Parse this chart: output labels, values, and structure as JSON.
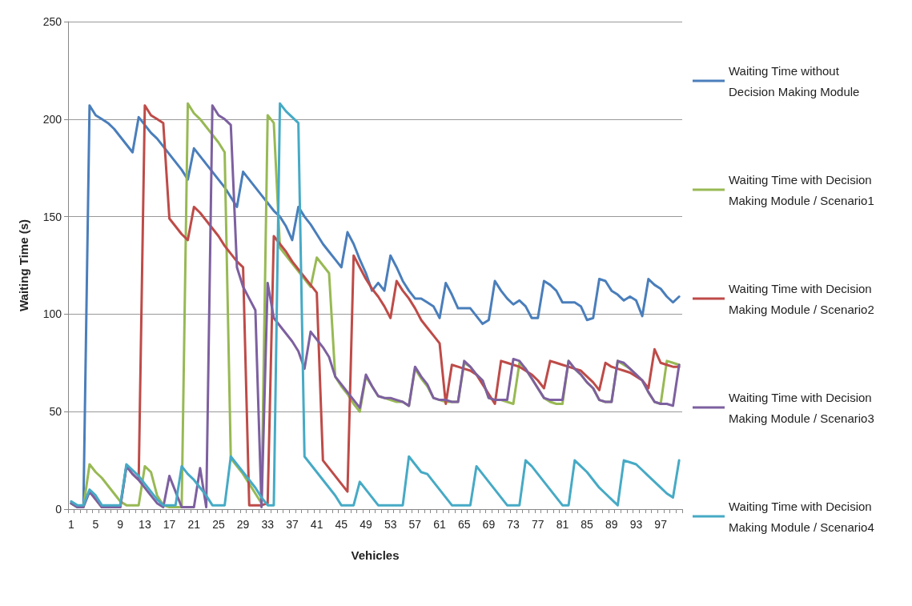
{
  "chart_data": {
    "type": "line",
    "xlabel": "Vehicles",
    "ylabel": "Waiting Time (s)",
    "categories": [
      "1",
      null,
      null,
      null,
      "5",
      null,
      null,
      null,
      "9",
      null,
      null,
      null,
      "13",
      null,
      null,
      null,
      "17",
      null,
      null,
      null,
      "21",
      null,
      null,
      null,
      "25",
      null,
      null,
      null,
      "29",
      null,
      null,
      null,
      "33",
      null,
      null,
      null,
      "37",
      null,
      null,
      null,
      "41",
      null,
      null,
      null,
      "45",
      null,
      null,
      null,
      "49",
      null,
      null,
      null,
      "53",
      null,
      null,
      null,
      "57",
      null,
      null,
      null,
      "61",
      null,
      null,
      null,
      "65",
      null,
      null,
      null,
      "69",
      null,
      null,
      null,
      "73",
      null,
      null,
      null,
      "77",
      null,
      null,
      null,
      "81",
      null,
      null,
      null,
      "85",
      null,
      null,
      null,
      "89",
      null,
      null,
      null,
      "93",
      null,
      null,
      null,
      "97",
      null,
      null,
      null
    ],
    "ylim": [
      0,
      250
    ],
    "yticks": [
      0,
      50,
      100,
      150,
      200,
      250
    ],
    "grid": "y",
    "legend": "right",
    "marker": "none",
    "line_style": "solid",
    "series": [
      {
        "name": "Waiting Time without Decision Making Module",
        "color": "#4a7ebb",
        "values": [
          3,
          1,
          1,
          207,
          202,
          200,
          198,
          195,
          191,
          187,
          183,
          201,
          197,
          193,
          190,
          186,
          182,
          178,
          174,
          169,
          185,
          181,
          177,
          173,
          169,
          165,
          160,
          155,
          173,
          169,
          165,
          161,
          157,
          153,
          150,
          145,
          138,
          155,
          150,
          146,
          141,
          136,
          132,
          128,
          124,
          142,
          136,
          128,
          121,
          112,
          116,
          112,
          130,
          124,
          117,
          112,
          108,
          108,
          106,
          104,
          98,
          116,
          110,
          103,
          103,
          103,
          99,
          95,
          97,
          117,
          112,
          108,
          105,
          107,
          104,
          98,
          98,
          117,
          115,
          112,
          106,
          106,
          106,
          104,
          97,
          98,
          118,
          117,
          112,
          110,
          107,
          109,
          107,
          99,
          118,
          115,
          113,
          109,
          106,
          109
        ]
      },
      {
        "name": "Waiting Time with Decision Making Module / Scenario1",
        "color": "#98b954",
        "values": [
          3,
          1,
          1,
          23,
          19,
          16,
          12,
          8,
          4,
          2,
          2,
          2,
          22,
          19,
          7,
          2,
          1,
          1,
          1,
          208,
          203,
          200,
          196,
          192,
          188,
          183,
          26,
          22,
          18,
          13,
          8,
          3,
          202,
          198,
          134,
          130,
          126,
          122,
          118,
          114,
          129,
          125,
          121,
          68,
          63,
          59,
          54,
          50,
          68,
          63,
          58,
          57,
          56,
          55,
          55,
          53,
          72,
          67,
          63,
          57,
          56,
          55,
          55,
          55,
          75,
          73,
          69,
          66,
          57,
          56,
          56,
          55,
          54,
          75,
          72,
          67,
          62,
          57,
          55,
          54,
          54,
          76,
          72,
          69,
          65,
          62,
          56,
          55,
          55,
          76,
          74,
          72,
          69,
          66,
          60,
          55,
          54,
          76,
          75,
          74
        ]
      },
      {
        "name": "Waiting Time with Decision Making Module / Scenario2",
        "color": "#be4b48",
        "values": [
          null,
          null,
          null,
          9,
          5,
          1,
          1,
          1,
          1,
          22,
          18,
          15,
          207,
          202,
          200,
          198,
          149,
          145,
          141,
          138,
          155,
          152,
          148,
          144,
          140,
          135,
          131,
          127,
          124,
          2,
          2,
          2,
          3,
          140,
          136,
          132,
          127,
          123,
          119,
          115,
          111,
          25,
          21,
          17,
          13,
          9,
          130,
          124,
          118,
          113,
          109,
          104,
          98,
          117,
          112,
          108,
          103,
          97,
          93,
          89,
          85,
          54,
          74,
          73,
          72,
          71,
          69,
          64,
          59,
          54,
          76,
          75,
          74,
          73,
          71,
          69,
          66,
          62,
          76,
          75,
          74,
          73,
          72,
          71,
          68,
          65,
          61,
          75,
          73,
          72,
          71,
          70,
          68,
          66,
          62,
          82,
          75,
          74,
          73,
          73
        ]
      },
      {
        "name": "Waiting Time with Decision Making Module / Scenario3",
        "color": "#7d60a0",
        "values": [
          3,
          1,
          1,
          9,
          5,
          1,
          1,
          1,
          1,
          22,
          18,
          15,
          11,
          7,
          3,
          1,
          17,
          9,
          1,
          1,
          1,
          21,
          1,
          207,
          202,
          200,
          197,
          124,
          114,
          108,
          102,
          1,
          116,
          98,
          94,
          90,
          86,
          81,
          72,
          91,
          87,
          83,
          78,
          68,
          64,
          60,
          56,
          52,
          69,
          63,
          58,
          57,
          57,
          56,
          55,
          53,
          73,
          68,
          64,
          57,
          56,
          56,
          55,
          55,
          76,
          73,
          69,
          66,
          57,
          56,
          56,
          56,
          77,
          76,
          72,
          67,
          62,
          57,
          56,
          56,
          56,
          76,
          72,
          69,
          65,
          62,
          56,
          55,
          55,
          76,
          75,
          72,
          69,
          66,
          60,
          55,
          54,
          54,
          53,
          74
        ]
      },
      {
        "name": "Waiting Time with Decision Making Module / Scenario4",
        "color": "#46aac5",
        "values": [
          4,
          2,
          2,
          10,
          7,
          2,
          2,
          2,
          2,
          23,
          20,
          17,
          13,
          9,
          5,
          2,
          2,
          2,
          22,
          18,
          15,
          11,
          7,
          2,
          2,
          2,
          27,
          23,
          19,
          15,
          11,
          6,
          2,
          2,
          208,
          204,
          201,
          198,
          27,
          23,
          19,
          15,
          11,
          7,
          2,
          2,
          2,
          14,
          10,
          6,
          2,
          2,
          2,
          2,
          2,
          27,
          23,
          19,
          18,
          14,
          10,
          6,
          2,
          2,
          2,
          2,
          22,
          18,
          14,
          10,
          6,
          2,
          2,
          2,
          25,
          22,
          18,
          14,
          10,
          6,
          2,
          2,
          25,
          22,
          19,
          15,
          11,
          8,
          5,
          2,
          25,
          24,
          23,
          20,
          17,
          14,
          11,
          8,
          6,
          25
        ]
      }
    ]
  }
}
